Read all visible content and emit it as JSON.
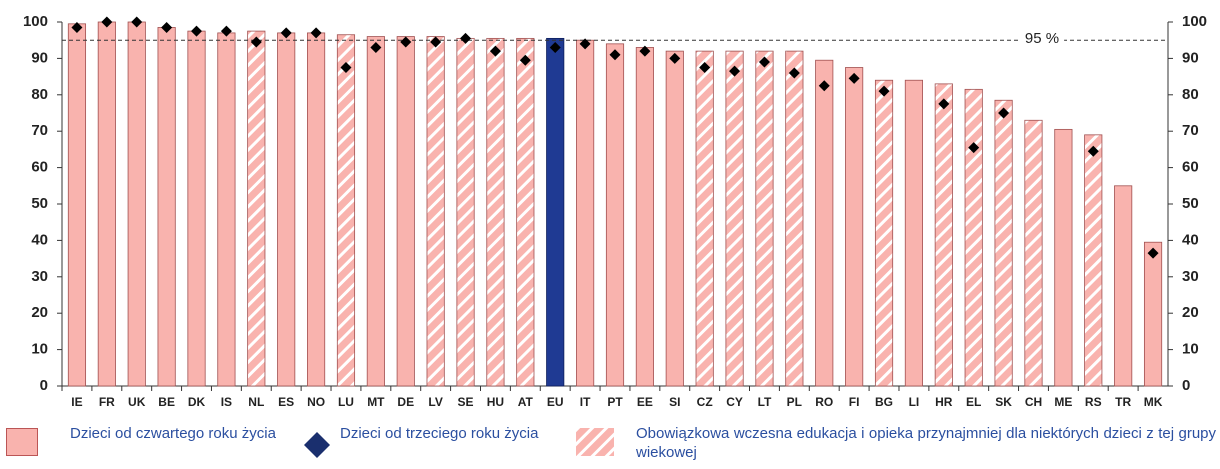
{
  "chart_data": {
    "type": "bar",
    "categories": [
      "IE",
      "FR",
      "UK",
      "BE",
      "DK",
      "IS",
      "NL",
      "ES",
      "NO",
      "LU",
      "MT",
      "DE",
      "LV",
      "SE",
      "HU",
      "AT",
      "EU",
      "IT",
      "PT",
      "EE",
      "SI",
      "CZ",
      "CY",
      "LT",
      "PL",
      "RO",
      "FI",
      "BG",
      "LI",
      "HR",
      "EL",
      "SK",
      "CH",
      "ME",
      "RS",
      "TR",
      "MK"
    ],
    "series": [
      {
        "name": "Dzieci od czwartego roku życia",
        "color": "#f9b3ae",
        "values": [
          99.5,
          100,
          100,
          98.5,
          97.5,
          97,
          97.5,
          97,
          97,
          96.5,
          96,
          96,
          96,
          95.5,
          95.5,
          95.5,
          95.5,
          95,
          94,
          93,
          92,
          92,
          92,
          92,
          92,
          89.5,
          87.5,
          84,
          84,
          83,
          81.5,
          78.5,
          73,
          70.5,
          69,
          55,
          39.5
        ]
      },
      {
        "name": "Dzieci od trzeciego roku życia",
        "color": "#000000",
        "legend_color": "#1a2f6e",
        "marker": "diamond",
        "values": [
          98.5,
          100,
          100,
          98.5,
          97.5,
          97.5,
          94.5,
          97,
          97,
          87.5,
          93,
          94.5,
          94.5,
          95.5,
          92,
          89.5,
          93,
          94,
          91,
          92,
          90,
          87.5,
          86.5,
          89,
          86,
          82.5,
          84.5,
          81,
          null,
          77.5,
          65.5,
          75,
          null,
          null,
          64.5,
          null,
          36.5
        ]
      }
    ],
    "compulsory_label": "Obowiązkowa wczesna edukacja i opieka przynajmniej dla niektórych dzieci z tej grupy wiekowej",
    "compulsory": [
      false,
      false,
      false,
      false,
      false,
      false,
      true,
      false,
      false,
      true,
      false,
      false,
      true,
      true,
      true,
      true,
      false,
      false,
      false,
      false,
      false,
      true,
      true,
      true,
      true,
      false,
      false,
      true,
      false,
      true,
      true,
      true,
      true,
      false,
      true,
      false,
      false
    ],
    "highlight": "EU",
    "highlight_color": "#1f3a93",
    "ref_line": {
      "value": 95,
      "label": "95 %"
    },
    "ylim": [
      0,
      100
    ],
    "yticks": [
      0,
      10,
      20,
      30,
      40,
      50,
      60,
      70,
      80,
      90,
      100
    ],
    "y2lim": [
      0,
      100
    ],
    "y2ticks": [
      0,
      10,
      20,
      30,
      40,
      50,
      60,
      70,
      80,
      90,
      100
    ],
    "grid": false
  }
}
